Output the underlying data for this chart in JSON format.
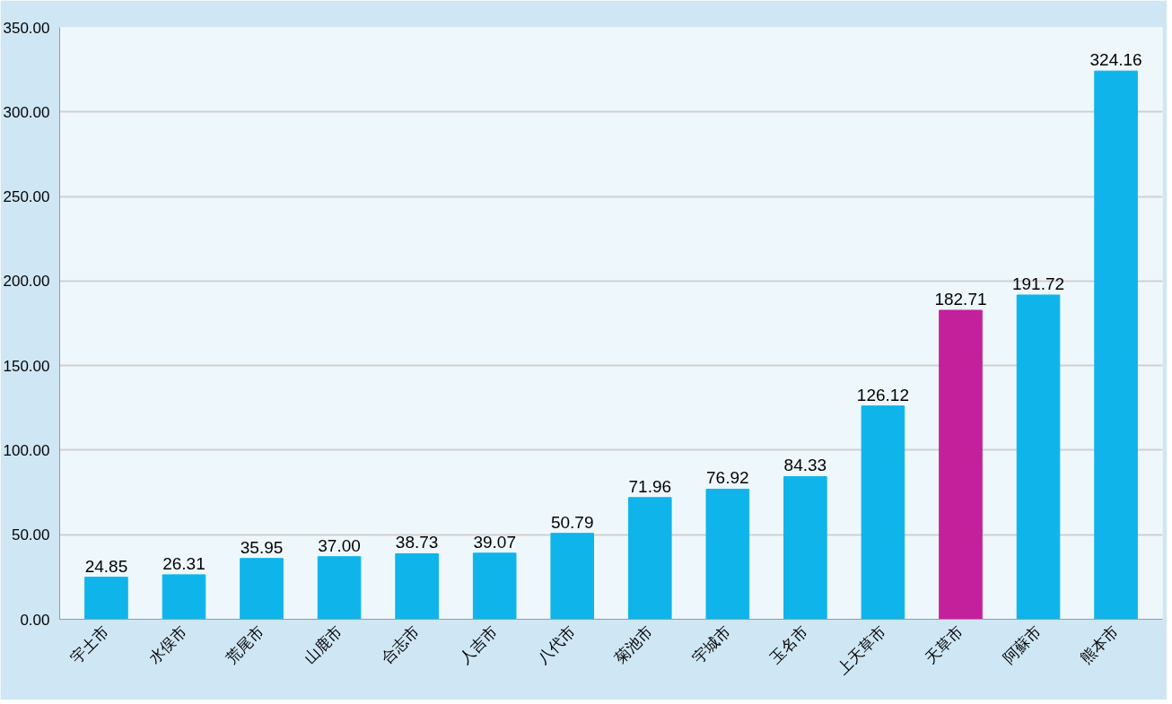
{
  "chart_data": {
    "type": "bar",
    "categories": [
      "宇土市",
      "水俣市",
      "荒尾市",
      "山鹿市",
      "合志市",
      "人吉市",
      "八代市",
      "菊池市",
      "宇城市",
      "玉名市",
      "上天草市",
      "天草市",
      "阿蘇市",
      "熊本市"
    ],
    "values": [
      24.85,
      26.31,
      35.95,
      37.0,
      38.73,
      39.07,
      50.79,
      71.96,
      76.92,
      84.33,
      126.12,
      182.71,
      191.72,
      324.16
    ],
    "colors": [
      "#0fb4ea",
      "#0fb4ea",
      "#0fb4ea",
      "#0fb4ea",
      "#0fb4ea",
      "#0fb4ea",
      "#0fb4ea",
      "#0fb4ea",
      "#0fb4ea",
      "#0fb4ea",
      "#0fb4ea",
      "#c4209c",
      "#0fb4ea",
      "#0fb4ea"
    ],
    "value_labels": [
      "24.85",
      "26.31",
      "35.95",
      "37.00",
      "38.73",
      "39.07",
      "50.79",
      "71.96",
      "76.92",
      "84.33",
      "126.12",
      "182.71",
      "191.72",
      "324.16"
    ],
    "ylim": [
      0,
      350
    ],
    "yticks": [
      {
        "value": 0,
        "label": "0.00"
      },
      {
        "value": 50,
        "label": "50.00"
      },
      {
        "value": 100,
        "label": "100.00"
      },
      {
        "value": 150,
        "label": "150.00"
      },
      {
        "value": 200,
        "label": "200.00"
      },
      {
        "value": 250,
        "label": "250.00"
      },
      {
        "value": 300,
        "label": "300.00"
      },
      {
        "value": 350,
        "label": "350.00"
      }
    ],
    "grid": "y"
  }
}
